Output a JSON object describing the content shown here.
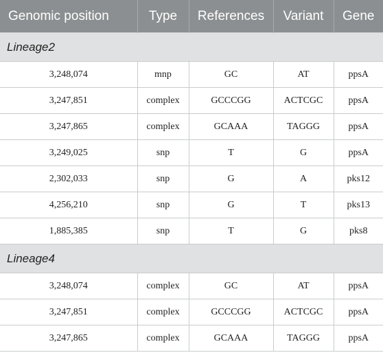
{
  "table": {
    "headers": [
      "Genomic position",
      "Type",
      "References",
      "Variant",
      "Gene"
    ],
    "groups": [
      {
        "label": "Lineage2",
        "rows": [
          [
            "3,248,074",
            "mnp",
            "GC",
            "AT",
            "ppsA"
          ],
          [
            "3,247,851",
            "complex",
            "GCCCGG",
            "ACTCGC",
            "ppsA"
          ],
          [
            "3,247,865",
            "complex",
            "GCAAA",
            "TAGGG",
            "ppsA"
          ],
          [
            "3,249,025",
            "snp",
            "T",
            "G",
            "ppsA"
          ],
          [
            "2,302,033",
            "snp",
            "G",
            "A",
            "pks12"
          ],
          [
            "4,256,210",
            "snp",
            "G",
            "T",
            "pks13"
          ],
          [
            "1,885,385",
            "snp",
            "T",
            "G",
            "pks8"
          ]
        ]
      },
      {
        "label": "Lineage4",
        "rows": [
          [
            "3,248,074",
            "complex",
            "GC",
            "AT",
            "ppsA"
          ],
          [
            "3,247,851",
            "complex",
            "GCCCGG",
            "ACTCGC",
            "ppsA"
          ],
          [
            "3,247,865",
            "complex",
            "GCAAA",
            "TAGGG",
            "ppsA"
          ]
        ]
      }
    ]
  }
}
